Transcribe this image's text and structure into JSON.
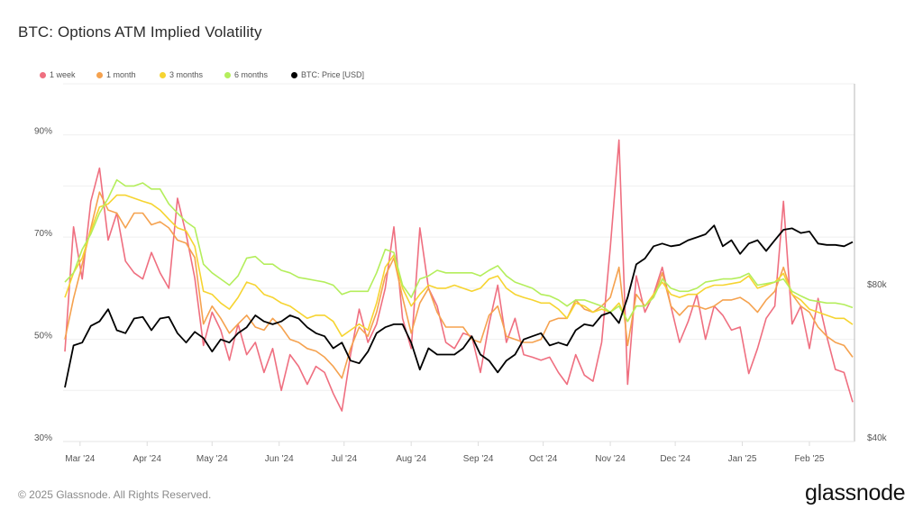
{
  "title": "BTC: Options ATM Implied Volatility",
  "footer": "© 2025 Glassnode. All Rights Reserved.",
  "logo": "glassnode",
  "chart_data": {
    "type": "line",
    "title": "BTC: Options ATM Implied Volatility",
    "legend_position": "top-left",
    "grid": true,
    "x": [
      "2024-02-23",
      "2024-02-27",
      "2024-03-02",
      "2024-03-06",
      "2024-03-10",
      "2024-03-14",
      "2024-03-18",
      "2024-03-22",
      "2024-03-26",
      "2024-03-30",
      "2024-04-03",
      "2024-04-07",
      "2024-04-11",
      "2024-04-15",
      "2024-04-19",
      "2024-04-23",
      "2024-04-27",
      "2024-05-01",
      "2024-05-05",
      "2024-05-09",
      "2024-05-13",
      "2024-05-17",
      "2024-05-21",
      "2024-05-25",
      "2024-05-29",
      "2024-06-02",
      "2024-06-06",
      "2024-06-10",
      "2024-06-14",
      "2024-06-18",
      "2024-06-22",
      "2024-06-26",
      "2024-06-30",
      "2024-07-04",
      "2024-07-08",
      "2024-07-12",
      "2024-07-16",
      "2024-07-20",
      "2024-07-24",
      "2024-07-28",
      "2024-08-01",
      "2024-08-05",
      "2024-08-09",
      "2024-08-13",
      "2024-08-17",
      "2024-08-21",
      "2024-08-25",
      "2024-08-29",
      "2024-09-02",
      "2024-09-06",
      "2024-09-10",
      "2024-09-14",
      "2024-09-18",
      "2024-09-22",
      "2024-09-26",
      "2024-09-30",
      "2024-10-04",
      "2024-10-08",
      "2024-10-12",
      "2024-10-16",
      "2024-10-20",
      "2024-10-24",
      "2024-10-28",
      "2024-11-01",
      "2024-11-05",
      "2024-11-09",
      "2024-11-13",
      "2024-11-17",
      "2024-11-21",
      "2024-11-25",
      "2024-11-29",
      "2024-12-03",
      "2024-12-07",
      "2024-12-11",
      "2024-12-15",
      "2024-12-19",
      "2024-12-23",
      "2024-12-27",
      "2024-12-31",
      "2025-01-04",
      "2025-01-08",
      "2025-01-12",
      "2025-01-16",
      "2025-01-20",
      "2025-01-24",
      "2025-01-28",
      "2025-02-01",
      "2025-02-05",
      "2025-02-09",
      "2025-02-13",
      "2025-02-17",
      "2025-02-21"
    ],
    "x_ticks": [
      "Mar '24",
      "Apr '24",
      "May '24",
      "Jun '24",
      "Jul '24",
      "Aug '24",
      "Sep '24",
      "Oct '24",
      "Nov '24",
      "Dec '24",
      "Jan '25",
      "Feb '25"
    ],
    "x_tick_dates": [
      "2024-03-01",
      "2024-04-01",
      "2024-05-01",
      "2024-06-01",
      "2024-07-01",
      "2024-08-01",
      "2024-09-01",
      "2024-10-01",
      "2024-11-01",
      "2024-12-01",
      "2025-01-01",
      "2025-02-01"
    ],
    "y_left": {
      "unit": "%",
      "ylim": [
        30,
        100
      ],
      "ticks": [
        "90%",
        "70%",
        "50%",
        "30%"
      ],
      "tick_values": [
        90,
        70,
        50,
        30
      ]
    },
    "y_right": {
      "scale": "log",
      "ylim": [
        40000,
        202000
      ],
      "ticks": [
        "$80k",
        "$40k"
      ],
      "tick_values": [
        80000,
        40000
      ]
    },
    "series": [
      {
        "name": "1 week",
        "color": "#ef6f80",
        "axis": "left",
        "values": [
          47.6,
          72,
          61.8,
          77,
          83.5,
          69.4,
          74.7,
          65.3,
          63,
          61.8,
          67,
          63,
          60,
          77.6,
          70.6,
          62,
          48.8,
          55.3,
          51.8,
          45.9,
          53,
          47,
          49.4,
          43.5,
          48.2,
          40,
          47,
          44.7,
          41.2,
          44.7,
          43.5,
          39.4,
          36,
          47,
          55.9,
          49.4,
          53,
          60,
          72,
          54.1,
          48.2,
          71.8,
          60,
          56.5,
          49.4,
          48.2,
          51.2,
          50.6,
          43.5,
          53,
          60.6,
          49.4,
          54.1,
          47,
          46.5,
          45.9,
          46.5,
          43.5,
          41.2,
          47,
          43,
          41.8,
          49.4,
          68,
          89,
          41.2,
          62.4,
          55.3,
          58.8,
          64.1,
          56.5,
          49.4,
          53.5,
          58.8,
          50,
          56.5,
          54.7,
          51.8,
          52.4,
          43.3,
          48.2,
          54.1,
          56.5,
          77,
          53,
          56.5,
          48.2,
          58,
          50.6,
          44.1,
          43.5,
          37.7
        ]
      },
      {
        "name": "1 month",
        "color": "#f5a24f",
        "axis": "left",
        "values": [
          50,
          58,
          64.7,
          71.8,
          78.8,
          75.3,
          74.7,
          71.8,
          74.7,
          74.7,
          72.4,
          73,
          71.8,
          69.4,
          68.8,
          66,
          53,
          56.5,
          54.1,
          51.2,
          53,
          54.7,
          52.4,
          51.8,
          54.1,
          52.4,
          50,
          49.4,
          48.2,
          47.7,
          46.5,
          44.7,
          42.4,
          48.2,
          52.4,
          50.6,
          55.3,
          62.4,
          65.9,
          58.2,
          51.2,
          57.1,
          60,
          55.3,
          52.4,
          52.4,
          52.4,
          50,
          49.4,
          54.7,
          56.5,
          50.6,
          50,
          49.4,
          49.4,
          50,
          53.5,
          54.1,
          54.1,
          57.7,
          55.9,
          55.3,
          56.5,
          58.2,
          64.1,
          48.8,
          58.8,
          56.5,
          58.2,
          63,
          56.5,
          54.7,
          56.5,
          56.5,
          55.9,
          56.5,
          57.7,
          57.7,
          58.2,
          57.1,
          55.3,
          57.7,
          59.4,
          64.1,
          58.8,
          56.5,
          55.3,
          52.4,
          50.6,
          49.4,
          48.8,
          46.5
        ]
      },
      {
        "name": "3 months",
        "color": "#f6d431",
        "axis": "left",
        "values": [
          58.2,
          63,
          65.9,
          71.2,
          75.9,
          76.5,
          78.2,
          78.2,
          77.6,
          77,
          76.5,
          75.3,
          73.5,
          71.8,
          71.2,
          68.2,
          59.4,
          58.8,
          57.1,
          55.9,
          58.2,
          61.2,
          60.6,
          58.8,
          58.2,
          57.1,
          56.5,
          55.3,
          54.1,
          54.7,
          54.7,
          53.5,
          50.6,
          51.8,
          53,
          51.8,
          57.1,
          64.1,
          66.5,
          60,
          56.5,
          58.8,
          60.6,
          60,
          60,
          60.6,
          60,
          59.4,
          60,
          61.8,
          62.4,
          60,
          58.8,
          58.2,
          57.7,
          57.1,
          57.1,
          55.9,
          54.1,
          57.1,
          56.5,
          55.3,
          55.9,
          55.3,
          57.1,
          53.5,
          56.5,
          56.5,
          58.8,
          61.2,
          58.8,
          58.2,
          58.8,
          58.8,
          60,
          60.6,
          60.6,
          60.9,
          61.2,
          62.4,
          60,
          60.6,
          61.2,
          62.9,
          58.8,
          57.7,
          55.9,
          55.3,
          54.7,
          54.1,
          54.1,
          52.9
        ]
      },
      {
        "name": "6 months",
        "color": "#b4ee5c",
        "axis": "left",
        "values": [
          61.2,
          63,
          67.6,
          70.6,
          74.7,
          77.6,
          81.2,
          80,
          80,
          80.6,
          79.4,
          79.4,
          76.5,
          74.7,
          73,
          71.8,
          64.7,
          63,
          61.8,
          60.6,
          62.4,
          65.9,
          66.2,
          64.7,
          64.7,
          63.5,
          63,
          62.1,
          61.8,
          61.5,
          61.2,
          60.6,
          58.8,
          59.4,
          59.4,
          59.4,
          63,
          67.6,
          67,
          60.6,
          58.2,
          61.8,
          62.4,
          63.5,
          63,
          63,
          63,
          63,
          62.4,
          63.5,
          64.4,
          62.4,
          61.2,
          60.6,
          60,
          58.8,
          58.5,
          57.7,
          56.5,
          57.7,
          57.7,
          57.1,
          56.5,
          55.3,
          56.5,
          53.5,
          56.5,
          56.5,
          58.2,
          61.8,
          60,
          59.4,
          59.4,
          60,
          61.2,
          61.5,
          61.8,
          61.8,
          62.1,
          62.9,
          60.6,
          60.9,
          61.2,
          61.8,
          59.4,
          58.5,
          57.7,
          57.4,
          57.1,
          57.1,
          56.8,
          56.2
        ]
      },
      {
        "name": "BTC: Price [USD]",
        "color": "#000000",
        "axis": "right",
        "values": [
          51100,
          61800,
          62600,
          67500,
          68900,
          72800,
          66200,
          65300,
          69800,
          70300,
          66200,
          69800,
          70300,
          65300,
          62600,
          65700,
          63900,
          60100,
          63500,
          62600,
          65300,
          67100,
          70800,
          68900,
          68000,
          68900,
          70800,
          69800,
          67100,
          65300,
          64400,
          61000,
          62600,
          57700,
          57000,
          60100,
          65300,
          67100,
          68000,
          68000,
          62600,
          55400,
          61000,
          59300,
          59300,
          59300,
          61000,
          64400,
          59300,
          57700,
          54700,
          57700,
          59300,
          63500,
          64400,
          65300,
          61800,
          62600,
          61800,
          66200,
          68000,
          67500,
          70800,
          71800,
          68400,
          76800,
          89200,
          91600,
          96800,
          98000,
          96800,
          97400,
          99500,
          100800,
          102200,
          106400,
          96800,
          99500,
          93500,
          98000,
          99500,
          94800,
          99500,
          104300,
          105000,
          102800,
          103500,
          98000,
          97400,
          97400,
          96800,
          98700
        ]
      }
    ]
  }
}
